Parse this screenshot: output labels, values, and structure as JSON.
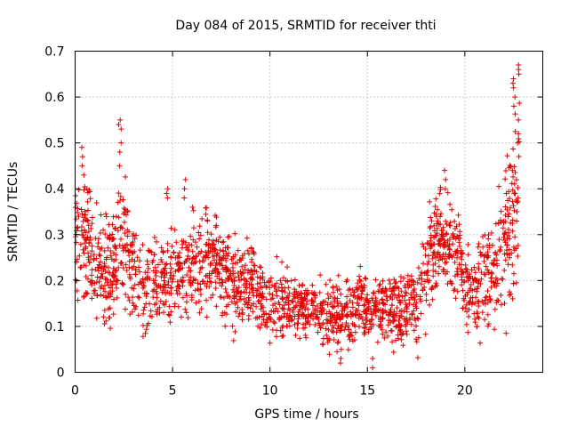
{
  "chart_data": {
    "type": "scatter",
    "title": "Day 084 of 2015, SRMTID for receiver thti",
    "xlabel": "GPS time / hours",
    "ylabel": "SRMTID / TECUs",
    "xlim": [
      0,
      24
    ],
    "ylim": [
      0,
      0.7
    ],
    "x_ticks": [
      0,
      5,
      10,
      15,
      20
    ],
    "x_tick_labels": [
      "0",
      "5",
      "10",
      "15",
      "20"
    ],
    "y_ticks": [
      0,
      0.1,
      0.2,
      0.3,
      0.4,
      0.5,
      0.6,
      0.7
    ],
    "y_tick_labels": [
      "0",
      "0.1",
      "0.2",
      "0.3",
      "0.4",
      "0.5",
      "0.6",
      "0.7"
    ],
    "grid": true,
    "marker": "plus",
    "series_color": "#e00000",
    "trend": {
      "x": [
        0,
        0.5,
        1,
        1.5,
        2,
        2.5,
        3,
        3.5,
        4,
        4.5,
        5,
        5.5,
        6,
        6.5,
        7,
        7.5,
        8,
        8.5,
        9,
        9.5,
        10,
        10.5,
        11,
        11.5,
        12,
        12.5,
        13,
        13.5,
        14,
        14.5,
        15,
        15.5,
        16,
        16.5,
        17,
        17.5,
        18,
        18.5,
        19,
        19.5,
        20,
        20.5,
        21,
        21.5,
        22,
        22.5,
        22.8
      ],
      "y": [
        0.27,
        0.3,
        0.24,
        0.22,
        0.23,
        0.3,
        0.22,
        0.19,
        0.19,
        0.2,
        0.22,
        0.21,
        0.23,
        0.24,
        0.25,
        0.23,
        0.2,
        0.19,
        0.2,
        0.18,
        0.16,
        0.15,
        0.15,
        0.14,
        0.14,
        0.13,
        0.13,
        0.13,
        0.13,
        0.14,
        0.14,
        0.14,
        0.14,
        0.13,
        0.13,
        0.15,
        0.22,
        0.28,
        0.3,
        0.26,
        0.2,
        0.18,
        0.2,
        0.24,
        0.27,
        0.35,
        0.45
      ]
    },
    "spread": {
      "x": [
        0,
        2,
        4,
        6,
        8,
        10,
        12,
        14,
        16,
        18,
        20,
        22,
        22.8
      ],
      "sd": [
        0.07,
        0.09,
        0.06,
        0.07,
        0.06,
        0.05,
        0.04,
        0.045,
        0.04,
        0.07,
        0.06,
        0.1,
        0.13
      ]
    },
    "points_per_hour": 90,
    "highlights": [
      {
        "x": 2.3,
        "y": [
          0.55,
          0.54,
          0.53,
          0.5,
          0.48,
          0.45
        ]
      },
      {
        "x": 0.4,
        "y": [
          0.49,
          0.47,
          0.45,
          0.43
        ]
      },
      {
        "x": 4.7,
        "y": [
          0.4,
          0.39,
          0.38
        ]
      },
      {
        "x": 5.6,
        "y": [
          0.42,
          0.4,
          0.38
        ]
      },
      {
        "x": 13.6,
        "y": [
          0.03,
          0.02,
          0.05
        ]
      },
      {
        "x": 15.3,
        "y": [
          0.01,
          0.03
        ]
      },
      {
        "x": 19.0,
        "y": [
          0.44,
          0.42,
          0.4
        ]
      },
      {
        "x": 22.5,
        "y": [
          0.64,
          0.63,
          0.62,
          0.6,
          0.58
        ]
      },
      {
        "x": 22.7,
        "y": [
          0.67,
          0.66,
          0.65,
          0.55,
          0.52
        ]
      }
    ]
  }
}
